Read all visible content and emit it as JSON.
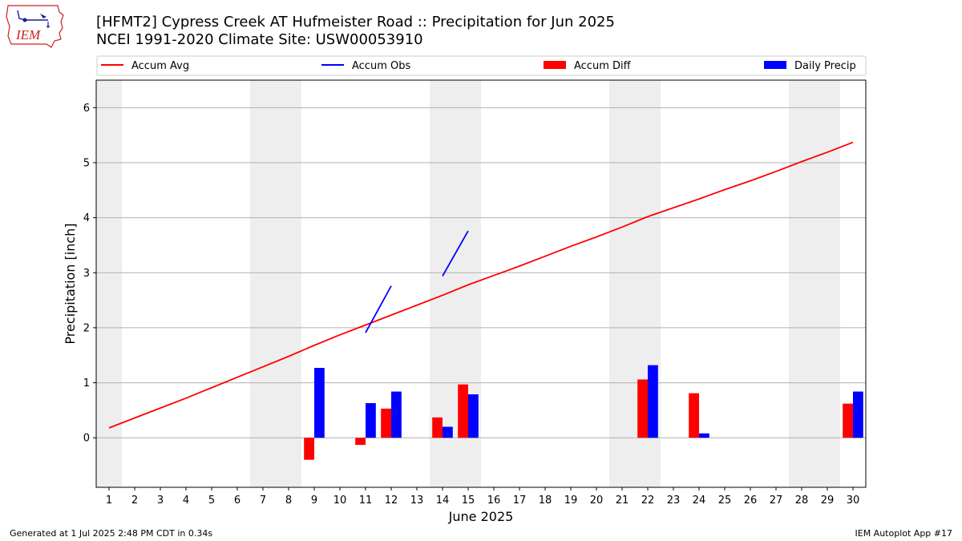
{
  "header": {
    "logo_text": "IEM",
    "title": "[HFMT2] Cypress Creek  AT Hufmeister Road :: Precipitation for Jun 2025",
    "subtitle": "NCEI 1991-2020 Climate Site: USW00053910"
  },
  "footer": {
    "left": "Generated at 1 Jul 2025 2:48 PM CDT in 0.34s",
    "right": "IEM Autoplot App #17"
  },
  "colors": {
    "avg": "#ff0000",
    "obs": "#0000ff",
    "diff": "#ff0000",
    "precip": "#0000ff",
    "weekend_band": "#eeeeee",
    "grid": "#b0b0b0"
  },
  "chart_data": {
    "type": "bar",
    "title": "[HFMT2] Cypress Creek  AT Hufmeister Road :: Precipitation for Jun 2025",
    "xlabel": "June 2025",
    "ylabel": "Precipitation [inch]",
    "x": [
      1,
      2,
      3,
      4,
      5,
      6,
      7,
      8,
      9,
      10,
      11,
      12,
      13,
      14,
      15,
      16,
      17,
      18,
      19,
      20,
      21,
      22,
      23,
      24,
      25,
      26,
      27,
      28,
      29,
      30
    ],
    "xlim": [
      0.5,
      30.5
    ],
    "ylim": [
      -0.9,
      6.5
    ],
    "yticks": [
      0,
      1,
      2,
      3,
      4,
      5,
      6
    ],
    "grid": true,
    "legend_position": "top, above plot",
    "weekend_bands": [
      [
        0.5,
        1.5
      ],
      [
        6.5,
        8.5
      ],
      [
        13.5,
        15.5
      ],
      [
        20.5,
        22.5
      ],
      [
        27.5,
        29.5
      ]
    ],
    "series": [
      {
        "name": "Accum Avg",
        "kind": "line",
        "color": "#ff0000",
        "values": [
          0.18,
          0.36,
          0.54,
          0.72,
          0.91,
          1.1,
          1.29,
          1.48,
          1.68,
          1.87,
          2.05,
          2.23,
          2.41,
          2.59,
          2.78,
          2.95,
          3.12,
          3.3,
          3.48,
          3.65,
          3.83,
          4.02,
          4.18,
          4.34,
          4.51,
          4.67,
          4.84,
          5.02,
          5.19,
          5.37
        ]
      },
      {
        "name": "Accum Obs",
        "kind": "line",
        "color": "#0000ff",
        "values": [
          null,
          null,
          null,
          null,
          null,
          null,
          null,
          null,
          null,
          null,
          1.91,
          2.76,
          null,
          2.94,
          3.76,
          null,
          null,
          null,
          null,
          null,
          null,
          null,
          null,
          null,
          null,
          null,
          null,
          null,
          null,
          null
        ]
      },
      {
        "name": "Accum Diff",
        "kind": "bar",
        "color": "#ff0000",
        "values": [
          0,
          0,
          0,
          0,
          0,
          0,
          0,
          0,
          -0.4,
          0,
          -0.13,
          0.53,
          0,
          0.37,
          0.97,
          0,
          0,
          0,
          0,
          0,
          0,
          1.06,
          0,
          0.81,
          0,
          0,
          0,
          0,
          0,
          0.62
        ]
      },
      {
        "name": "Daily Precip",
        "kind": "bar",
        "color": "#0000ff",
        "values": [
          0,
          0,
          0,
          0,
          0,
          0,
          0,
          0,
          1.27,
          0,
          0.63,
          0.84,
          0,
          0.2,
          0.79,
          0,
          0,
          0,
          0,
          0,
          0,
          1.32,
          0,
          0.08,
          0,
          0,
          0,
          0,
          0,
          0.84
        ]
      }
    ]
  }
}
